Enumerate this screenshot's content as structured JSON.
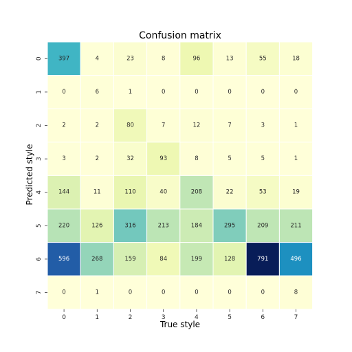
{
  "chart_data": {
    "type": "heatmap",
    "title": "Confusion matrix",
    "xlabel": "True style",
    "ylabel": "Predicted style",
    "x_categories": [
      "0",
      "1",
      "2",
      "3",
      "4",
      "5",
      "6",
      "7"
    ],
    "y_categories": [
      "0",
      "1",
      "2",
      "3",
      "4",
      "5",
      "6",
      "7"
    ],
    "colormap": "YlGnBu",
    "value_range": [
      0,
      791
    ],
    "colorbar": false,
    "matrix": [
      [
        397,
        4,
        23,
        8,
        96,
        13,
        55,
        18
      ],
      [
        0,
        6,
        1,
        0,
        0,
        0,
        0,
        0
      ],
      [
        2,
        2,
        80,
        7,
        12,
        7,
        3,
        1
      ],
      [
        3,
        2,
        32,
        93,
        8,
        5,
        5,
        1
      ],
      [
        144,
        11,
        110,
        40,
        208,
        22,
        53,
        19
      ],
      [
        220,
        126,
        316,
        213,
        184,
        295,
        209,
        211
      ],
      [
        596,
        268,
        159,
        84,
        199,
        128,
        791,
        496
      ],
      [
        0,
        1,
        0,
        0,
        0,
        0,
        0,
        8
      ]
    ]
  }
}
